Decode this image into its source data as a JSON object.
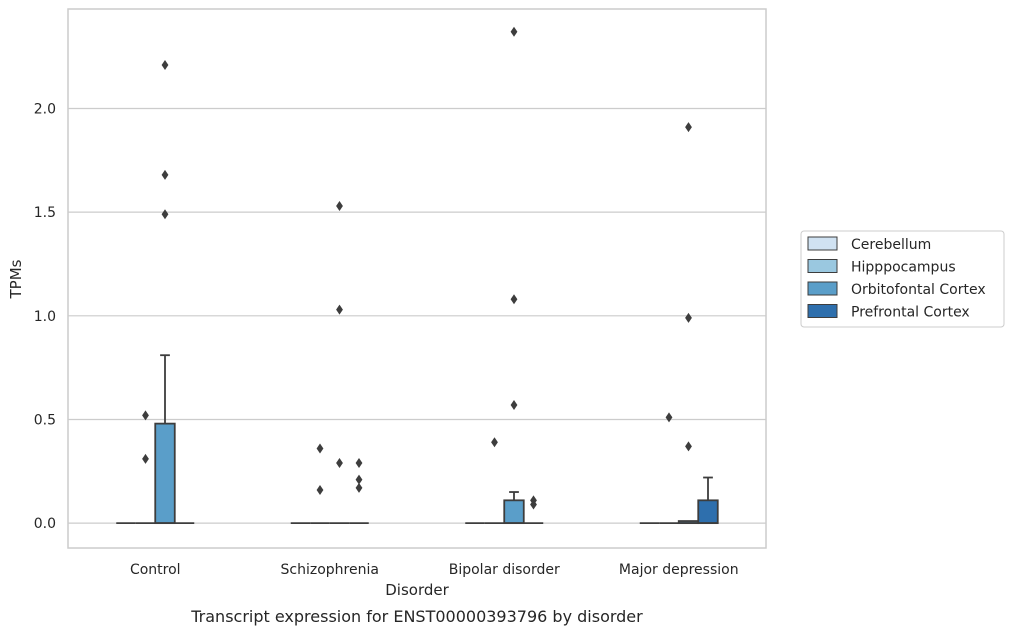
{
  "chart_data": {
    "type": "box",
    "caption": "Transcript expression for ENST00000393796 by disorder",
    "xlabel": "Disorder",
    "ylabel": "TPMs",
    "ylim": [
      -0.12,
      2.48
    ],
    "yticks": [
      0.0,
      0.5,
      1.0,
      1.5,
      2.0
    ],
    "ytick_labels": [
      "0.0",
      "0.5",
      "1.0",
      "1.5",
      "2.0"
    ],
    "grid": "horizontal",
    "legend_position": "right",
    "categories": [
      "Control",
      "Schizophrenia",
      "Bipolar disorder",
      "Major depression"
    ],
    "series": [
      {
        "name": "Cerebellum",
        "color": "#d0e2f2",
        "boxes": [
          {
            "q1": 0,
            "median": 0,
            "q3": 0,
            "whisker_low": 0,
            "whisker_high": 0,
            "outliers": []
          },
          {
            "q1": 0,
            "median": 0,
            "q3": 0,
            "whisker_low": 0,
            "whisker_high": 0,
            "outliers": []
          },
          {
            "q1": 0,
            "median": 0,
            "q3": 0,
            "whisker_low": 0,
            "whisker_high": 0,
            "outliers": []
          },
          {
            "q1": 0,
            "median": 0,
            "q3": 0,
            "whisker_low": 0,
            "whisker_high": 0,
            "outliers": []
          }
        ]
      },
      {
        "name": "Hipppocampus",
        "color": "#9ac8e0",
        "boxes": [
          {
            "q1": 0,
            "median": 0,
            "q3": 0,
            "whisker_low": 0,
            "whisker_high": 0,
            "outliers": [
              0.31,
              0.52
            ]
          },
          {
            "q1": 0,
            "median": 0,
            "q3": 0,
            "whisker_low": 0,
            "whisker_high": 0,
            "outliers": [
              0.16,
              0.36
            ]
          },
          {
            "q1": 0,
            "median": 0,
            "q3": 0,
            "whisker_low": 0,
            "whisker_high": 0,
            "outliers": [
              0.39
            ]
          },
          {
            "q1": 0,
            "median": 0,
            "q3": 0,
            "whisker_low": 0,
            "whisker_high": 0,
            "outliers": [
              0.51
            ]
          }
        ]
      },
      {
        "name": "Orbitofontal Cortex",
        "color": "#5a9ec9",
        "boxes": [
          {
            "q1": 0,
            "median": 0,
            "q3": 0.48,
            "whisker_low": 0,
            "whisker_high": 0.81,
            "outliers": [
              1.49,
              1.68,
              2.21
            ]
          },
          {
            "q1": 0,
            "median": 0,
            "q3": 0,
            "whisker_low": 0,
            "whisker_high": 0,
            "outliers": [
              0.29,
              1.03,
              1.53
            ]
          },
          {
            "q1": 0,
            "median": 0,
            "q3": 0.11,
            "whisker_low": 0,
            "whisker_high": 0.15,
            "outliers": [
              0.57,
              1.08,
              2.37
            ]
          },
          {
            "q1": 0,
            "median": 0,
            "q3": 0.01,
            "whisker_low": 0,
            "whisker_high": 0.01,
            "outliers": [
              0.37,
              0.99,
              1.91
            ]
          }
        ]
      },
      {
        "name": "Prefrontal Cortex",
        "color": "#2e6fad",
        "boxes": [
          {
            "q1": 0,
            "median": 0,
            "q3": 0,
            "whisker_low": 0,
            "whisker_high": 0,
            "outliers": []
          },
          {
            "q1": 0,
            "median": 0,
            "q3": 0,
            "whisker_low": 0,
            "whisker_high": 0,
            "outliers": [
              0.17,
              0.21,
              0.29
            ]
          },
          {
            "q1": 0,
            "median": 0,
            "q3": 0,
            "whisker_low": 0,
            "whisker_high": 0,
            "outliers": [
              0.09,
              0.11
            ]
          },
          {
            "q1": 0,
            "median": 0,
            "q3": 0.11,
            "whisker_low": 0,
            "whisker_high": 0.22,
            "outliers": []
          }
        ]
      }
    ]
  }
}
